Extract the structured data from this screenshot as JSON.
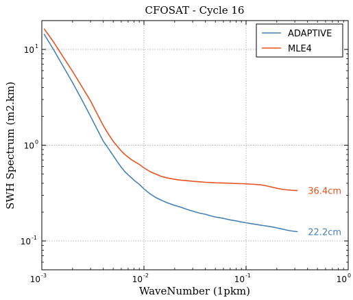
{
  "chart_data": {
    "type": "line",
    "title": "CFOSAT - Cycle 16",
    "xlabel": "WaveNumber (1pkm)",
    "ylabel": "SWH Spectrum (m2.km)",
    "xscale": "log",
    "yscale": "log",
    "xlim": [
      0.001,
      1
    ],
    "ylim": [
      0.05,
      20
    ],
    "x_ticks": [
      {
        "base": "10",
        "exp": "-3"
      },
      {
        "base": "10",
        "exp": "-2"
      },
      {
        "base": "10",
        "exp": "-1"
      },
      {
        "base": "10",
        "exp": "0"
      }
    ],
    "y_ticks": [
      {
        "base": "10",
        "exp": "-1"
      },
      {
        "base": "10",
        "exp": "0"
      },
      {
        "base": "10",
        "exp": "1"
      }
    ],
    "grid": true,
    "legend_position": "top-right",
    "series": [
      {
        "name": "ADAPTIVE",
        "color": "#4682b4",
        "end_label": "22.2cm",
        "x": [
          0.00105,
          0.0013,
          0.0016,
          0.002,
          0.0025,
          0.003,
          0.0035,
          0.004,
          0.0045,
          0.005,
          0.0055,
          0.006,
          0.0065,
          0.007,
          0.0075,
          0.008,
          0.009,
          0.01,
          0.0115,
          0.013,
          0.015,
          0.017,
          0.02,
          0.023,
          0.027,
          0.03,
          0.035,
          0.04,
          0.045,
          0.05,
          0.06,
          0.07,
          0.08,
          0.09,
          0.1,
          0.12,
          0.14,
          0.16,
          0.18,
          0.2,
          0.22,
          0.25,
          0.28,
          0.32
        ],
        "values": [
          14.5,
          10,
          6.8,
          4.5,
          2.9,
          2.0,
          1.45,
          1.1,
          0.92,
          0.78,
          0.67,
          0.59,
          0.53,
          0.49,
          0.46,
          0.43,
          0.39,
          0.35,
          0.31,
          0.285,
          0.265,
          0.25,
          0.235,
          0.225,
          0.212,
          0.205,
          0.195,
          0.19,
          0.183,
          0.178,
          0.172,
          0.166,
          0.162,
          0.158,
          0.155,
          0.15,
          0.146,
          0.143,
          0.14,
          0.137,
          0.134,
          0.13,
          0.127,
          0.125
        ]
      },
      {
        "name": "MLE4",
        "color": "#e8521f",
        "end_label": "36.4cm",
        "x": [
          0.00105,
          0.0013,
          0.0016,
          0.002,
          0.0025,
          0.003,
          0.0035,
          0.004,
          0.0045,
          0.005,
          0.0055,
          0.006,
          0.0065,
          0.007,
          0.0075,
          0.008,
          0.009,
          0.01,
          0.0115,
          0.013,
          0.015,
          0.017,
          0.02,
          0.023,
          0.027,
          0.03,
          0.035,
          0.04,
          0.045,
          0.05,
          0.06,
          0.07,
          0.08,
          0.09,
          0.1,
          0.12,
          0.14,
          0.16,
          0.18,
          0.2,
          0.22,
          0.25,
          0.28,
          0.32
        ],
        "values": [
          16.5,
          12,
          8.5,
          5.9,
          4.0,
          2.9,
          2.1,
          1.6,
          1.3,
          1.1,
          0.97,
          0.87,
          0.8,
          0.75,
          0.71,
          0.68,
          0.63,
          0.58,
          0.53,
          0.5,
          0.47,
          0.455,
          0.44,
          0.432,
          0.425,
          0.42,
          0.415,
          0.41,
          0.408,
          0.405,
          0.403,
          0.4,
          0.398,
          0.397,
          0.395,
          0.39,
          0.385,
          0.375,
          0.365,
          0.355,
          0.348,
          0.342,
          0.338,
          0.336
        ]
      }
    ]
  }
}
